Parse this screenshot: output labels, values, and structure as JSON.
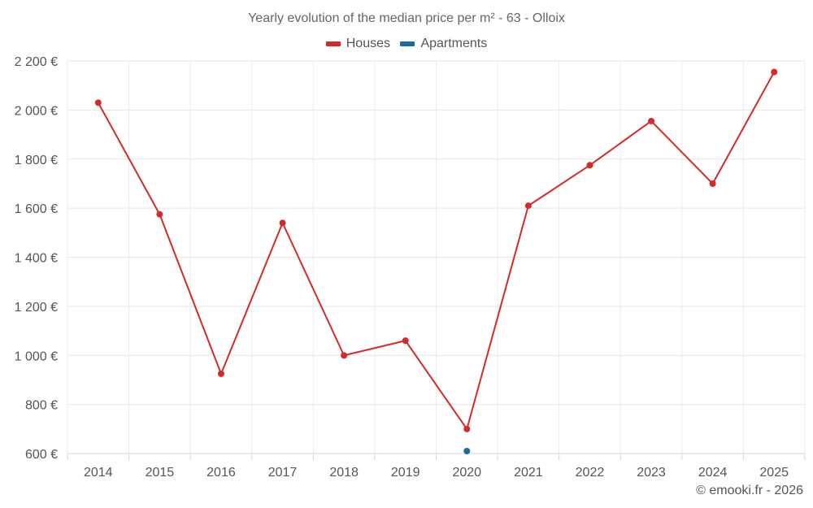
{
  "chart_data": {
    "type": "line",
    "title": "Yearly evolution of the median price per m² - 63 - Olloix",
    "xlabel": "",
    "ylabel": "",
    "categories": [
      "2014",
      "2015",
      "2016",
      "2017",
      "2018",
      "2019",
      "2020",
      "2021",
      "2022",
      "2023",
      "2024",
      "2025"
    ],
    "ylim": [
      600,
      2200
    ],
    "yticks": [
      600,
      800,
      1000,
      1200,
      1400,
      1600,
      1800,
      2000,
      2200
    ],
    "ytick_labels": [
      "600 €",
      "800 €",
      "1 000 €",
      "1 200 €",
      "1 400 €",
      "1 600 €",
      "1 800 €",
      "2 000 €",
      "2 200 €"
    ],
    "grid": true,
    "legend_position": "top-center",
    "series": [
      {
        "name": "Houses",
        "color": "#d32a2a",
        "values": [
          2030,
          1575,
          925,
          1540,
          1000,
          1060,
          700,
          1610,
          1775,
          1955,
          1700,
          2155
        ]
      },
      {
        "name": "Apartments",
        "color": "#1a6aa6",
        "values": [
          null,
          null,
          null,
          null,
          null,
          null,
          610,
          null,
          null,
          null,
          null,
          null
        ]
      }
    ]
  },
  "credit": "© emooki.fr - 2026"
}
